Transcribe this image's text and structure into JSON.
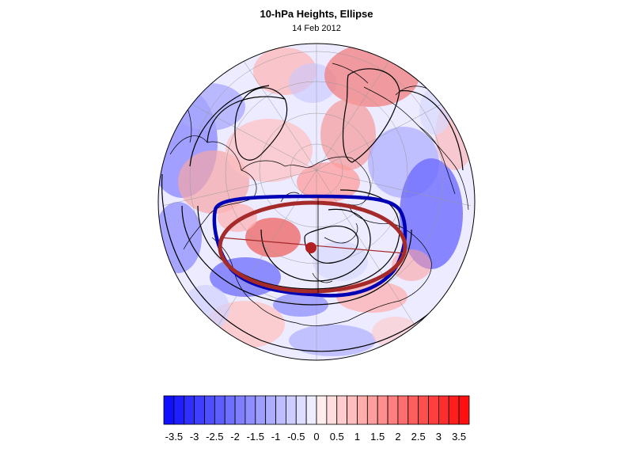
{
  "title": "10-hPa Heights, Ellipse",
  "subtitle": "14 Feb 2012",
  "colors": {
    "negative_max": "#1010ff",
    "positive_max": "#ff1010",
    "vortex_edge": "#0000b4",
    "ellipse": "#a52a2a",
    "center_dot": "#b22222"
  },
  "colorbar": {
    "tick_labels": [
      "-3.5",
      "-3",
      "-2.5",
      "-2",
      "-1.5",
      "-1",
      "-0.5",
      "0",
      "0.5",
      "1",
      "1.5",
      "2",
      "2.5",
      "3",
      "3.5"
    ],
    "levels": [
      -3.75,
      -3.5,
      -3.25,
      -3,
      -2.75,
      -2.5,
      -2.25,
      -2,
      -1.75,
      -1.5,
      -1.25,
      -1,
      -0.75,
      -0.5,
      -0.25,
      0,
      0.25,
      0.5,
      0.75,
      1,
      1.25,
      1.5,
      1.75,
      2,
      2.25,
      2.5,
      2.75,
      3,
      3.25,
      3.5,
      3.75
    ]
  }
}
